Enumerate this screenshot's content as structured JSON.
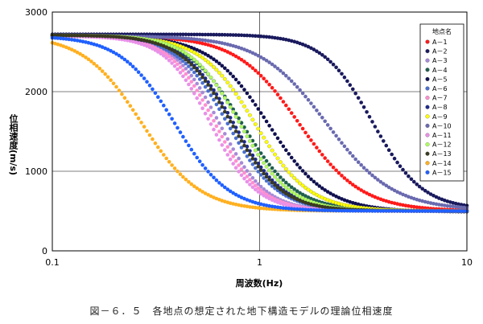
{
  "chart_data": {
    "type": "scatter",
    "xscale": "log",
    "xlim": [
      0.1,
      10
    ],
    "ylim": [
      0,
      3000
    ],
    "x_ticks": [
      "0.1",
      "1",
      "10"
    ],
    "y_ticks": [
      "0",
      "1000",
      "2000",
      "3000"
    ],
    "xlabel": "周波数(Hz)",
    "ylabel": "位相速度(m/s)",
    "legend_title": "地点名",
    "legend_position": "top-right",
    "series": [
      {
        "name": "A－1",
        "color": "#ff1a1a",
        "vlow": 2700,
        "vhigh": 500,
        "fc": 1.55,
        "w": 0.15
      },
      {
        "name": "A－2",
        "color": "#1a1a5e",
        "vlow": 2720,
        "vhigh": 520,
        "fc": 3.5,
        "w": 0.12
      },
      {
        "name": "A－3",
        "color": "#a58ad8",
        "vlow": 2700,
        "vhigh": 500,
        "fc": 0.64,
        "w": 0.11
      },
      {
        "name": "A－4",
        "color": "#1f5f4f",
        "vlow": 2710,
        "vhigh": 500,
        "fc": 0.82,
        "w": 0.13
      },
      {
        "name": "A－5",
        "color": "#101050",
        "vlow": 2700,
        "vhigh": 490,
        "fc": 1.1,
        "w": 0.14
      },
      {
        "name": "A－6",
        "color": "#4a6fd0",
        "vlow": 2700,
        "vhigh": 500,
        "fc": 0.7,
        "w": 0.12
      },
      {
        "name": "A－7",
        "color": "#ff8fd0",
        "vlow": 2700,
        "vhigh": 500,
        "fc": 0.61,
        "w": 0.11
      },
      {
        "name": "A－8",
        "color": "#1c2a8c",
        "vlow": 2700,
        "vhigh": 500,
        "fc": 0.75,
        "w": 0.12
      },
      {
        "name": "A－9",
        "color": "#ffff00",
        "vlow": 2700,
        "vhigh": 500,
        "fc": 0.95,
        "w": 0.13
      },
      {
        "name": "A－10",
        "color": "#6a6ab0",
        "vlow": 2700,
        "vhigh": 510,
        "fc": 2.1,
        "w": 0.16
      },
      {
        "name": "A－11",
        "color": "#e890e8",
        "vlow": 2700,
        "vhigh": 500,
        "fc": 0.58,
        "w": 0.11
      },
      {
        "name": "A－12",
        "color": "#b0ff60",
        "vlow": 2710,
        "vhigh": 500,
        "fc": 0.8,
        "w": 0.12
      },
      {
        "name": "A－13",
        "color": "#3a3a20",
        "vlow": 2710,
        "vhigh": 500,
        "fc": 0.73,
        "w": 0.12
      },
      {
        "name": "A－14",
        "color": "#ffb020",
        "vlow": 2710,
        "vhigh": 500,
        "fc": 0.27,
        "w": 0.14
      },
      {
        "name": "A－15",
        "color": "#2060ff",
        "vlow": 2700,
        "vhigh": 500,
        "fc": 0.39,
        "w": 0.13
      }
    ]
  },
  "caption": "図－６．５　各地点の想定された地下構造モデルの理論位相速度"
}
